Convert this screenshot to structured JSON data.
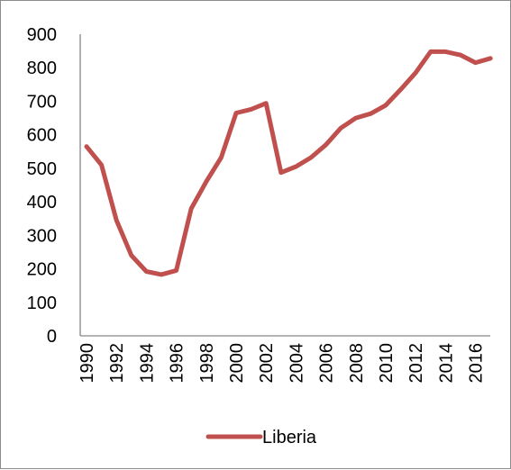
{
  "chart_data": {
    "type": "line",
    "title": "",
    "xlabel": "",
    "ylabel": "",
    "x": [
      1990,
      1991,
      1992,
      1993,
      1994,
      1995,
      1996,
      1997,
      1998,
      1999,
      2000,
      2001,
      2002,
      2003,
      2004,
      2005,
      2006,
      2007,
      2008,
      2009,
      2010,
      2011,
      2012,
      2013,
      2014,
      2015,
      2016,
      2017
    ],
    "x_tick_labels": [
      "1990",
      "1992",
      "1994",
      "1996",
      "1998",
      "2000",
      "2002",
      "2004",
      "2006",
      "2008",
      "2010",
      "2012",
      "2014",
      "2016"
    ],
    "series": [
      {
        "name": "Liberia",
        "color": "#c0504d",
        "values": [
          565,
          510,
          345,
          240,
          192,
          183,
          195,
          380,
          460,
          532,
          665,
          676,
          694,
          487,
          505,
          532,
          570,
          620,
          650,
          663,
          688,
          735,
          785,
          848,
          848,
          838,
          815,
          828
        ]
      }
    ],
    "ylim": [
      0,
      900
    ],
    "y_ticks": [
      0,
      100,
      200,
      300,
      400,
      500,
      600,
      700,
      800,
      900
    ],
    "grid": false,
    "legend_position": "bottom"
  }
}
